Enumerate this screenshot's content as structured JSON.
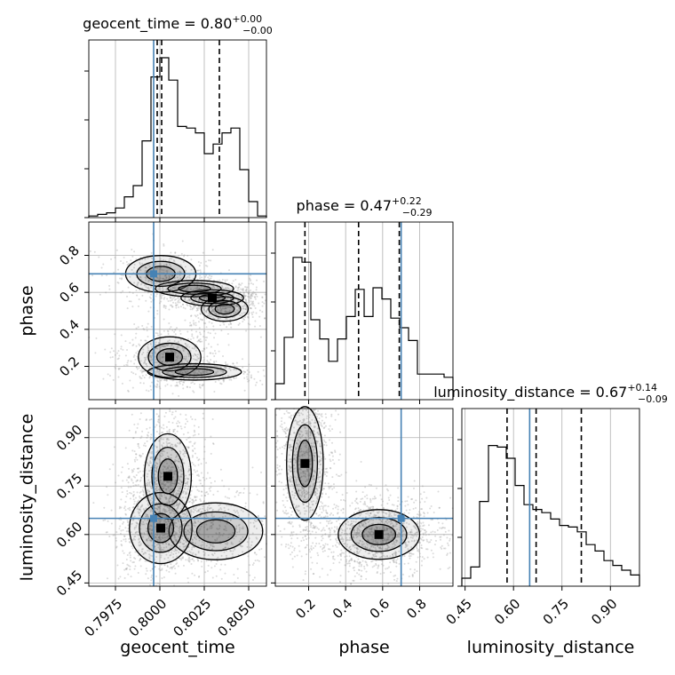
{
  "chart_data": {
    "type": "corner",
    "parameters": [
      "geocent_time",
      "phase",
      "luminosity_distance"
    ],
    "titles": [
      {
        "param": "geocent_time",
        "median": "0.80",
        "plus": "+0.00",
        "minus": "−0.00"
      },
      {
        "param": "phase",
        "median": "0.47",
        "plus": "+0.22",
        "minus": "−0.29"
      },
      {
        "param": "luminosity_distance",
        "median": "0.67",
        "plus": "+0.14",
        "minus": "−0.09"
      }
    ],
    "truths": {
      "geocent_time": 0.79965,
      "phase": 0.7,
      "luminosity_distance": 0.65
    },
    "quantiles": {
      "geocent_time": [
        0.79985,
        0.8001,
        0.80335
      ],
      "phase": [
        0.18,
        0.47,
        0.69
      ],
      "luminosity_distance": [
        0.58,
        0.67,
        0.81
      ]
    },
    "ranges": {
      "geocent_time": [
        0.796,
        0.806
      ],
      "phase": [
        0.02,
        0.98
      ],
      "luminosity_distance": [
        0.44,
        0.99
      ]
    },
    "ticks": {
      "geocent_time": {
        "values": [
          0.7975,
          0.8,
          0.8025,
          0.805
        ],
        "labels": [
          "0.7975",
          "0.8000",
          "0.8025",
          "0.8050"
        ]
      },
      "phase": {
        "values": [
          0.2,
          0.4,
          0.6,
          0.8
        ],
        "labels": [
          "0.2",
          "0.4",
          "0.6",
          "0.8"
        ]
      },
      "luminosity_distance": {
        "values": [
          0.45,
          0.6,
          0.75,
          0.9
        ],
        "labels": [
          "0.45",
          "0.60",
          "0.75",
          "0.90"
        ]
      }
    },
    "histograms": {
      "geocent_time": {
        "bins": 20,
        "counts": [
          0.01,
          0.02,
          0.03,
          0.06,
          0.13,
          0.2,
          0.48,
          0.88,
          1.0,
          0.86,
          0.57,
          0.56,
          0.53,
          0.4,
          0.46,
          0.53,
          0.56,
          0.3,
          0.1,
          0.01
        ]
      },
      "phase": {
        "bins": 20,
        "counts": [
          0.1,
          0.39,
          0.89,
          0.86,
          0.5,
          0.38,
          0.24,
          0.38,
          0.52,
          0.69,
          0.52,
          0.7,
          0.63,
          0.51,
          0.45,
          0.37,
          0.16,
          0.16,
          0.16,
          0.14
        ]
      },
      "luminosity_distance": {
        "bins": 20,
        "counts": [
          0.05,
          0.12,
          0.53,
          0.88,
          0.87,
          0.8,
          0.63,
          0.51,
          0.48,
          0.46,
          0.42,
          0.38,
          0.37,
          0.34,
          0.26,
          0.22,
          0.16,
          0.13,
          0.1,
          0.07
        ]
      }
    },
    "density_blobs": {
      "phase_vs_geocent_time": [
        {
          "x": 0.80005,
          "y": 0.7,
          "sx": 0.0009,
          "sy": 0.045,
          "w": 0.5
        },
        {
          "x": 0.80195,
          "y": 0.62,
          "sx": 0.001,
          "sy": 0.02,
          "w": 0.5
        },
        {
          "x": 0.80295,
          "y": 0.57,
          "sx": 0.0008,
          "sy": 0.02,
          "w": 0.7
        },
        {
          "x": 0.80365,
          "y": 0.51,
          "sx": 0.0006,
          "sy": 0.03,
          "w": 0.6
        },
        {
          "x": 0.80055,
          "y": 0.25,
          "sx": 0.0008,
          "sy": 0.05,
          "w": 1.0
        },
        {
          "x": 0.80195,
          "y": 0.17,
          "sx": 0.0012,
          "sy": 0.02,
          "w": 0.4
        }
      ],
      "luminosity_distance_vs_geocent_time": [
        {
          "x": 0.80045,
          "y": 0.78,
          "sx": 0.0006,
          "sy": 0.06,
          "w": 1.0
        },
        {
          "x": 0.80005,
          "y": 0.62,
          "sx": 0.0008,
          "sy": 0.05,
          "w": 0.9
        },
        {
          "x": 0.80315,
          "y": 0.61,
          "sx": 0.0012,
          "sy": 0.04,
          "w": 0.6
        }
      ],
      "luminosity_distance_vs_phase": [
        {
          "x": 0.18,
          "y": 0.82,
          "sx": 0.045,
          "sy": 0.08,
          "w": 0.8
        },
        {
          "x": 0.58,
          "y": 0.6,
          "sx": 0.1,
          "sy": 0.035,
          "w": 1.0
        }
      ]
    },
    "grid": true
  }
}
